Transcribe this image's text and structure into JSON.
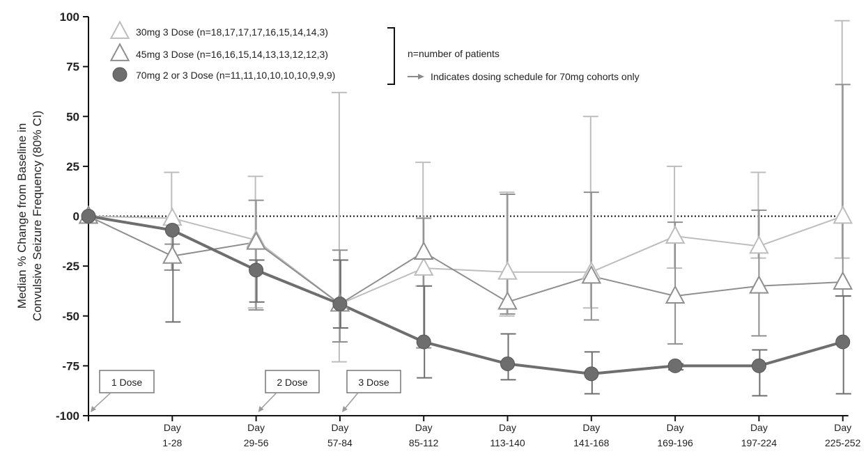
{
  "chart_data": {
    "type": "line",
    "title": "",
    "ylabel": "Median % Change from Baseline in Convulsive Seizure Frequency (80% CI)",
    "xlabel": "",
    "ylim": [
      -100,
      100
    ],
    "yticks": [
      100,
      75,
      50,
      25,
      0,
      -25,
      -50,
      -75,
      -100
    ],
    "categories": [
      "",
      "Day 1-28",
      "Day 29-56",
      "Day 57-84",
      "Day 85-112",
      "Day 113-140",
      "Day 141-168",
      "Day 169-196",
      "Day 197-224",
      "Day 225-252"
    ],
    "category_labels": [
      {
        "line1": "",
        "line2": ""
      },
      {
        "line1": "Day",
        "line2": "1-28"
      },
      {
        "line1": "Day",
        "line2": "29-56"
      },
      {
        "line1": "Day",
        "line2": "57-84"
      },
      {
        "line1": "Day",
        "line2": "85-112"
      },
      {
        "line1": "Day",
        "line2": "113-140"
      },
      {
        "line1": "Day",
        "line2": "141-168"
      },
      {
        "line1": "Day",
        "line2": "169-196"
      },
      {
        "line1": "Day",
        "line2": "197-224"
      },
      {
        "line1": "Day",
        "line2": "225-252"
      }
    ],
    "reference_line": 0,
    "series": [
      {
        "name": "30mg 3 Dose (n=18,17,17,17,16,15,14,14,3)",
        "marker": "triangle-light",
        "color": "#bdbdbd",
        "values": [
          0,
          -1,
          -12,
          -44,
          -26,
          -28,
          -28,
          -10,
          -15,
          0
        ],
        "ci_low": [
          0,
          -27,
          -46,
          -73,
          -35,
          -50,
          -46,
          -26,
          -21,
          -21
        ],
        "ci_high": [
          0,
          22,
          20,
          62,
          27,
          12,
          50,
          25,
          22,
          98
        ]
      },
      {
        "name": "45mg 3 Dose (n=16,16,15,14,13,13,12,12,3)",
        "marker": "triangle-dark",
        "color": "#8f8f8f",
        "values": [
          0,
          -20,
          -13,
          -44,
          -18,
          -43,
          -30,
          -40,
          -35,
          -33
        ],
        "ci_low": [
          0,
          -27,
          -47,
          -63,
          -66,
          -49,
          -52,
          -64,
          -60,
          -40
        ],
        "ci_high": [
          0,
          -14,
          8,
          -17,
          -1,
          11,
          12,
          -3,
          3,
          66
        ]
      },
      {
        "name": "70mg 2 or 3 Dose (n=11,11,10,10,10,10,9,9,9)",
        "marker": "circle",
        "color": "#6e6e6e",
        "values": [
          0,
          -7,
          -27,
          -44,
          -63,
          -74,
          -79,
          -75,
          -75,
          -63
        ],
        "ci_low": [
          0,
          -53,
          -43,
          -56,
          -81,
          -82,
          -89,
          -77,
          -90,
          -89
        ],
        "ci_high": [
          0,
          -3,
          -22,
          -22,
          -35,
          -59,
          -68,
          -74,
          -67,
          -40
        ]
      }
    ],
    "legend": {
      "entries": [
        "30mg 3 Dose (n=18,17,17,17,16,15,14,14,3)",
        "45mg 3 Dose (n=16,16,15,14,13,13,12,12,3)",
        "70mg 2 or 3 Dose (n=11,11,10,10,10,10,9,9,9)"
      ],
      "placement": "top-left"
    },
    "notes": {
      "n_note": "n=number of patients",
      "arrow_note": "Indicates dosing schedule for 70mg cohorts only"
    },
    "callouts": [
      {
        "label": "1 Dose",
        "index": 0
      },
      {
        "label": "2 Dose",
        "index": 2
      },
      {
        "label": "3 Dose",
        "index": 3
      }
    ]
  }
}
